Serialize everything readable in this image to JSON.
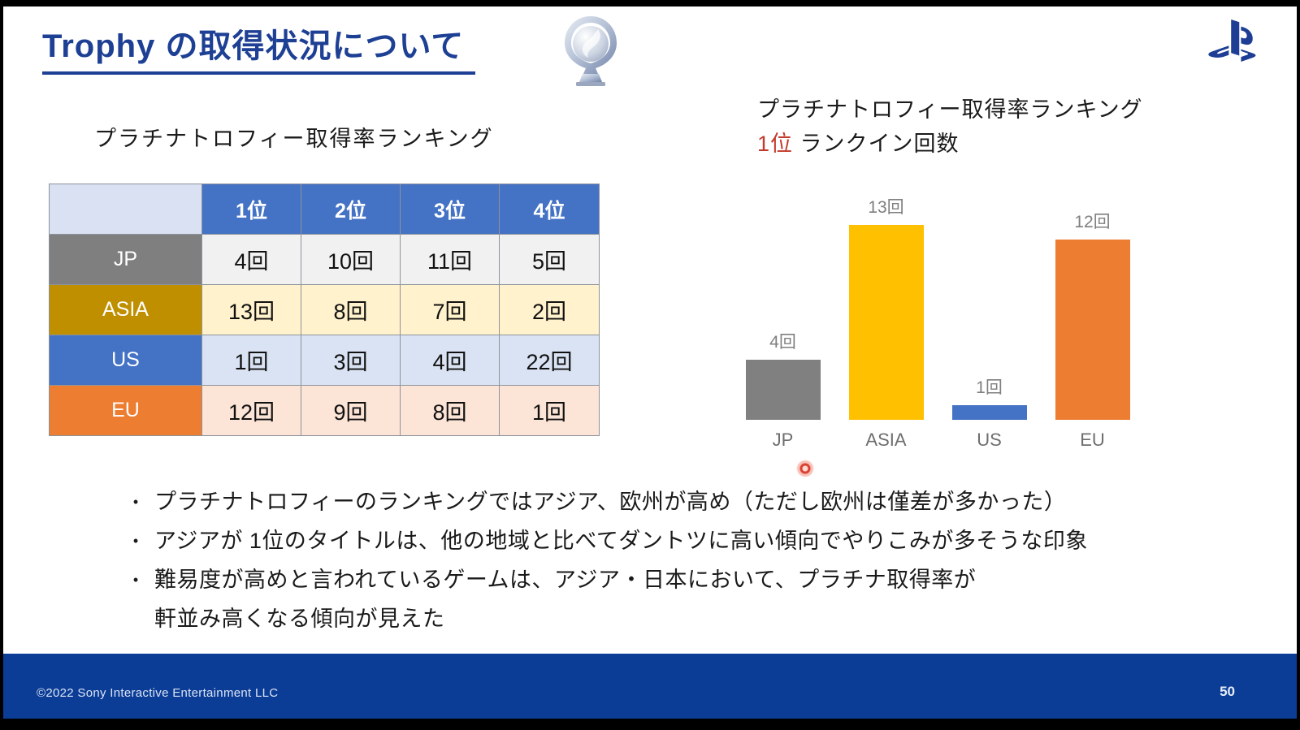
{
  "slide": {
    "title": "Trophy の取得状況について",
    "page_number": "50",
    "footer_copyright": "©2022 Sony Interactive Entertainment LLC"
  },
  "icons": {
    "trophy": "platinum-trophy",
    "brand": "playstation-logo",
    "pointer": "laser-pointer-dot"
  },
  "table_section": {
    "title": "プラチナトロフィー取得率ランキング",
    "columns": [
      "1位",
      "2位",
      "3位",
      "4位"
    ],
    "header_bg": "#4472c4",
    "corner_bg": "#d9e1f2",
    "rows": [
      {
        "label": "JP",
        "header_color": "#7f7f7f",
        "cell_color": "#f1f1f1",
        "values": [
          "4回",
          "10回",
          "11回",
          "5回"
        ]
      },
      {
        "label": "ASIA",
        "header_color": "#bf8f00",
        "cell_color": "#fff2cc",
        "values": [
          "13回",
          "8回",
          "7回",
          "2回"
        ]
      },
      {
        "label": "US",
        "header_color": "#4472c4",
        "cell_color": "#dae3f3",
        "values": [
          "1回",
          "3回",
          "4回",
          "22回"
        ]
      },
      {
        "label": "EU",
        "header_color": "#ed7d31",
        "cell_color": "#fce4d6",
        "values": [
          "12回",
          "9回",
          "8回",
          "1回"
        ]
      }
    ]
  },
  "chart_section": {
    "title_line1": "プラチナトロフィー取得率ランキング",
    "title_line2_highlight": "1位",
    "title_line2_rest": " ランクイン回数",
    "highlight_color": "#c3392b"
  },
  "chart_data": {
    "type": "bar",
    "title": "プラチナトロフィー取得率ランキング 1位 ランクイン回数",
    "categories": [
      "JP",
      "ASIA",
      "US",
      "EU"
    ],
    "values": [
      4,
      13,
      1,
      12
    ],
    "data_labels": [
      "4回",
      "13回",
      "1回",
      "12回"
    ],
    "colors": [
      "#808080",
      "#ffc000",
      "#4472c4",
      "#ed7d31"
    ],
    "xlabel": "",
    "ylabel": "",
    "ylim": [
      0,
      13
    ],
    "grid": false,
    "legend": false
  },
  "bullets": {
    "marker": "•",
    "items": [
      {
        "text": "プラチナトロフィーのランキングではアジア、欧州が高め（ただし欧州は僅差が多かった）",
        "continuation": ""
      },
      {
        "text": "アジアが 1位のタイトルは、他の地域と比べてダントツに高い傾向でやりこみが多そうな印象",
        "continuation": ""
      },
      {
        "text": "難易度が高めと言われているゲームは、アジア・日本において、プラチナ取得率が",
        "continuation": "軒並み高くなる傾向が見えた"
      }
    ]
  },
  "colors": {
    "title_blue": "#1e4094",
    "footer_blue": "#0b3d96",
    "laser_red": "#d9402f"
  }
}
